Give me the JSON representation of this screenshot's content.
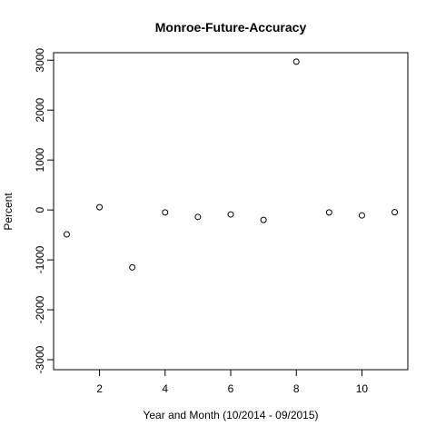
{
  "chart_data": {
    "type": "scatter",
    "title": "Monroe-Future-Accuracy",
    "xlabel": "Year and Month (10/2014 - 09/2015)",
    "ylabel": "Percent",
    "xlim": [
      0.6,
      11.4
    ],
    "ylim": [
      -3200,
      3150
    ],
    "xticks": [
      2,
      4,
      6,
      8,
      10
    ],
    "yticks": [
      -3000,
      -2000,
      -1000,
      0,
      1000,
      2000,
      3000
    ],
    "grid": false,
    "marker": "open-circle",
    "series": [
      {
        "x": [
          1,
          2,
          3,
          4,
          5,
          6,
          7,
          8,
          9,
          10,
          11
        ],
        "y": [
          -490,
          55,
          -1150,
          -50,
          -140,
          -90,
          -200,
          2970,
          -50,
          -110,
          -45
        ]
      }
    ]
  }
}
